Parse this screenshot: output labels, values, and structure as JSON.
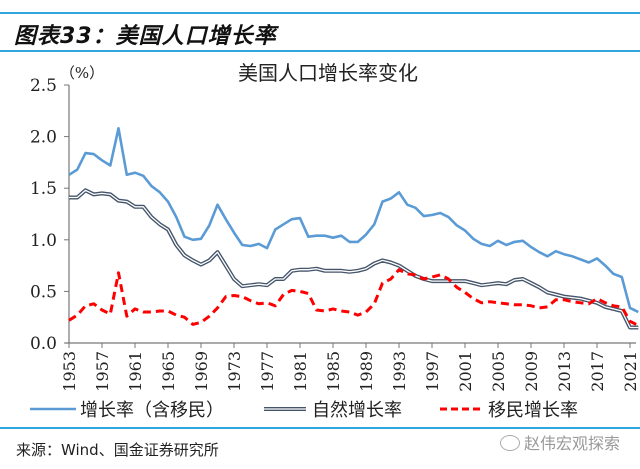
{
  "figure_title": "图表33：美国人口增长率",
  "source": "来源：Wind、国金证券研究所",
  "watermark": "赵伟宏观探索",
  "watermark_icon": "wechat-icon",
  "colors": {
    "total": "#5b9bd5",
    "natural": "#44546a",
    "migration": "#ff0000",
    "rule": "#2fa6dc"
  },
  "chart_data": {
    "type": "line",
    "title": "美国人口增长率变化",
    "ylabel": "（%）",
    "xlabel": "",
    "ylim": [
      0,
      2.5
    ],
    "yticks": [
      "0.0",
      "0.5",
      "1.0",
      "1.5",
      "2.0",
      "2.5"
    ],
    "xticks": [
      "1953",
      "1957",
      "1961",
      "1965",
      "1969",
      "1973",
      "1977",
      "1981",
      "1985",
      "1989",
      "1993",
      "1997",
      "2001",
      "2005",
      "2009",
      "2013",
      "2017",
      "2021"
    ],
    "x": [
      1953,
      1954,
      1955,
      1956,
      1957,
      1958,
      1959,
      1960,
      1961,
      1962,
      1963,
      1964,
      1965,
      1966,
      1967,
      1968,
      1969,
      1970,
      1971,
      1972,
      1973,
      1974,
      1975,
      1976,
      1977,
      1978,
      1979,
      1980,
      1981,
      1982,
      1983,
      1984,
      1985,
      1986,
      1987,
      1988,
      1989,
      1990,
      1991,
      1992,
      1993,
      1994,
      1995,
      1996,
      1997,
      1998,
      1999,
      2000,
      2001,
      2002,
      2003,
      2004,
      2005,
      2006,
      2007,
      2008,
      2009,
      2010,
      2011,
      2012,
      2013,
      2014,
      2015,
      2016,
      2017,
      2018,
      2019,
      2020,
      2021,
      2022
    ],
    "legend_position": "bottom",
    "series": [
      {
        "name": "增长率（含移民）",
        "style": "solid",
        "values": [
          1.63,
          1.68,
          1.84,
          1.83,
          1.77,
          1.72,
          2.08,
          1.63,
          1.65,
          1.62,
          1.52,
          1.46,
          1.37,
          1.22,
          1.03,
          1.0,
          1.01,
          1.14,
          1.34,
          1.2,
          1.07,
          0.95,
          0.94,
          0.96,
          0.92,
          1.1,
          1.15,
          1.2,
          1.21,
          1.03,
          1.04,
          1.04,
          1.02,
          1.04,
          0.98,
          0.98,
          1.05,
          1.15,
          1.37,
          1.4,
          1.46,
          1.34,
          1.31,
          1.23,
          1.24,
          1.26,
          1.22,
          1.14,
          1.09,
          1.01,
          0.96,
          0.94,
          0.99,
          0.95,
          0.98,
          0.99,
          0.93,
          0.88,
          0.84,
          0.89,
          0.86,
          0.84,
          0.81,
          0.78,
          0.82,
          0.75,
          0.67,
          0.64,
          0.34,
          0.3
        ]
      },
      {
        "name": "自然增长率",
        "style": "double",
        "values": [
          1.41,
          1.41,
          1.48,
          1.44,
          1.45,
          1.44,
          1.38,
          1.37,
          1.32,
          1.32,
          1.22,
          1.15,
          1.1,
          0.95,
          0.85,
          0.8,
          0.76,
          0.8,
          0.88,
          0.75,
          0.62,
          0.55,
          0.56,
          0.57,
          0.56,
          0.62,
          0.62,
          0.7,
          0.71,
          0.71,
          0.72,
          0.7,
          0.7,
          0.7,
          0.69,
          0.7,
          0.72,
          0.77,
          0.8,
          0.78,
          0.75,
          0.7,
          0.65,
          0.62,
          0.6,
          0.6,
          0.6,
          0.6,
          0.6,
          0.58,
          0.56,
          0.57,
          0.58,
          0.57,
          0.61,
          0.62,
          0.58,
          0.54,
          0.49,
          0.47,
          0.45,
          0.44,
          0.43,
          0.41,
          0.39,
          0.35,
          0.33,
          0.31,
          0.15,
          0.15
        ]
      },
      {
        "name": "移民增长率",
        "style": "dashed",
        "values": [
          0.22,
          0.27,
          0.36,
          0.38,
          0.32,
          0.28,
          0.68,
          0.26,
          0.33,
          0.3,
          0.3,
          0.31,
          0.31,
          0.27,
          0.25,
          0.18,
          0.2,
          0.26,
          0.34,
          0.45,
          0.46,
          0.45,
          0.41,
          0.38,
          0.39,
          0.36,
          0.47,
          0.51,
          0.5,
          0.48,
          0.32,
          0.31,
          0.33,
          0.31,
          0.3,
          0.27,
          0.3,
          0.38,
          0.58,
          0.62,
          0.71,
          0.67,
          0.66,
          0.62,
          0.64,
          0.66,
          0.62,
          0.54,
          0.49,
          0.43,
          0.39,
          0.4,
          0.39,
          0.38,
          0.37,
          0.37,
          0.36,
          0.34,
          0.35,
          0.42,
          0.42,
          0.4,
          0.39,
          0.38,
          0.43,
          0.39,
          0.36,
          0.35,
          0.21,
          0.17
        ]
      }
    ]
  }
}
